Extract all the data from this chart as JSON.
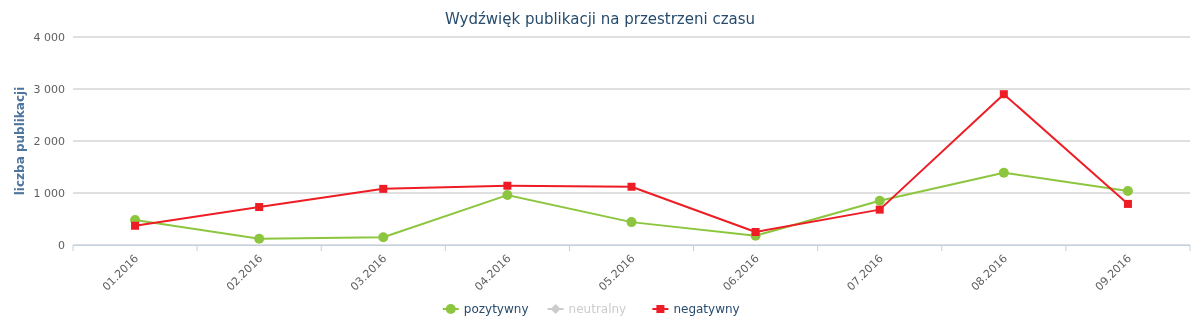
{
  "chart_data": {
    "type": "line",
    "title": "Wydźwięk publikacji na przestrzeni czasu",
    "ylabel": "liczba publikacji",
    "categories": [
      "01.2016",
      "02.2016",
      "03.2016",
      "04.2016",
      "05.2016",
      "06.2016",
      "07.2016",
      "08.2016",
      "09.2016"
    ],
    "ylim": [
      0,
      4000
    ],
    "yticks": [
      {
        "value": 0,
        "label": "0"
      },
      {
        "value": 1000,
        "label": "1 000"
      },
      {
        "value": 2000,
        "label": "2 000"
      },
      {
        "value": 3000,
        "label": "3 000"
      },
      {
        "value": 4000,
        "label": "4 000"
      }
    ],
    "grid": "y",
    "legend": "bottom",
    "series": [
      {
        "name": "pozytywny",
        "color": "#8cc63e",
        "marker": "circle",
        "values": [
          480,
          120,
          150,
          960,
          440,
          180,
          850,
          1390,
          1040
        ]
      },
      {
        "name": "neutralny",
        "color": "#cccccc",
        "marker": "diamond",
        "values": [
          null,
          null,
          null,
          null,
          null,
          null,
          null,
          null,
          null
        ]
      },
      {
        "name": "negatywny",
        "color": "#ee1c25",
        "marker": "square",
        "values": [
          370,
          730,
          1080,
          1140,
          1120,
          250,
          680,
          2900,
          790
        ]
      }
    ]
  }
}
